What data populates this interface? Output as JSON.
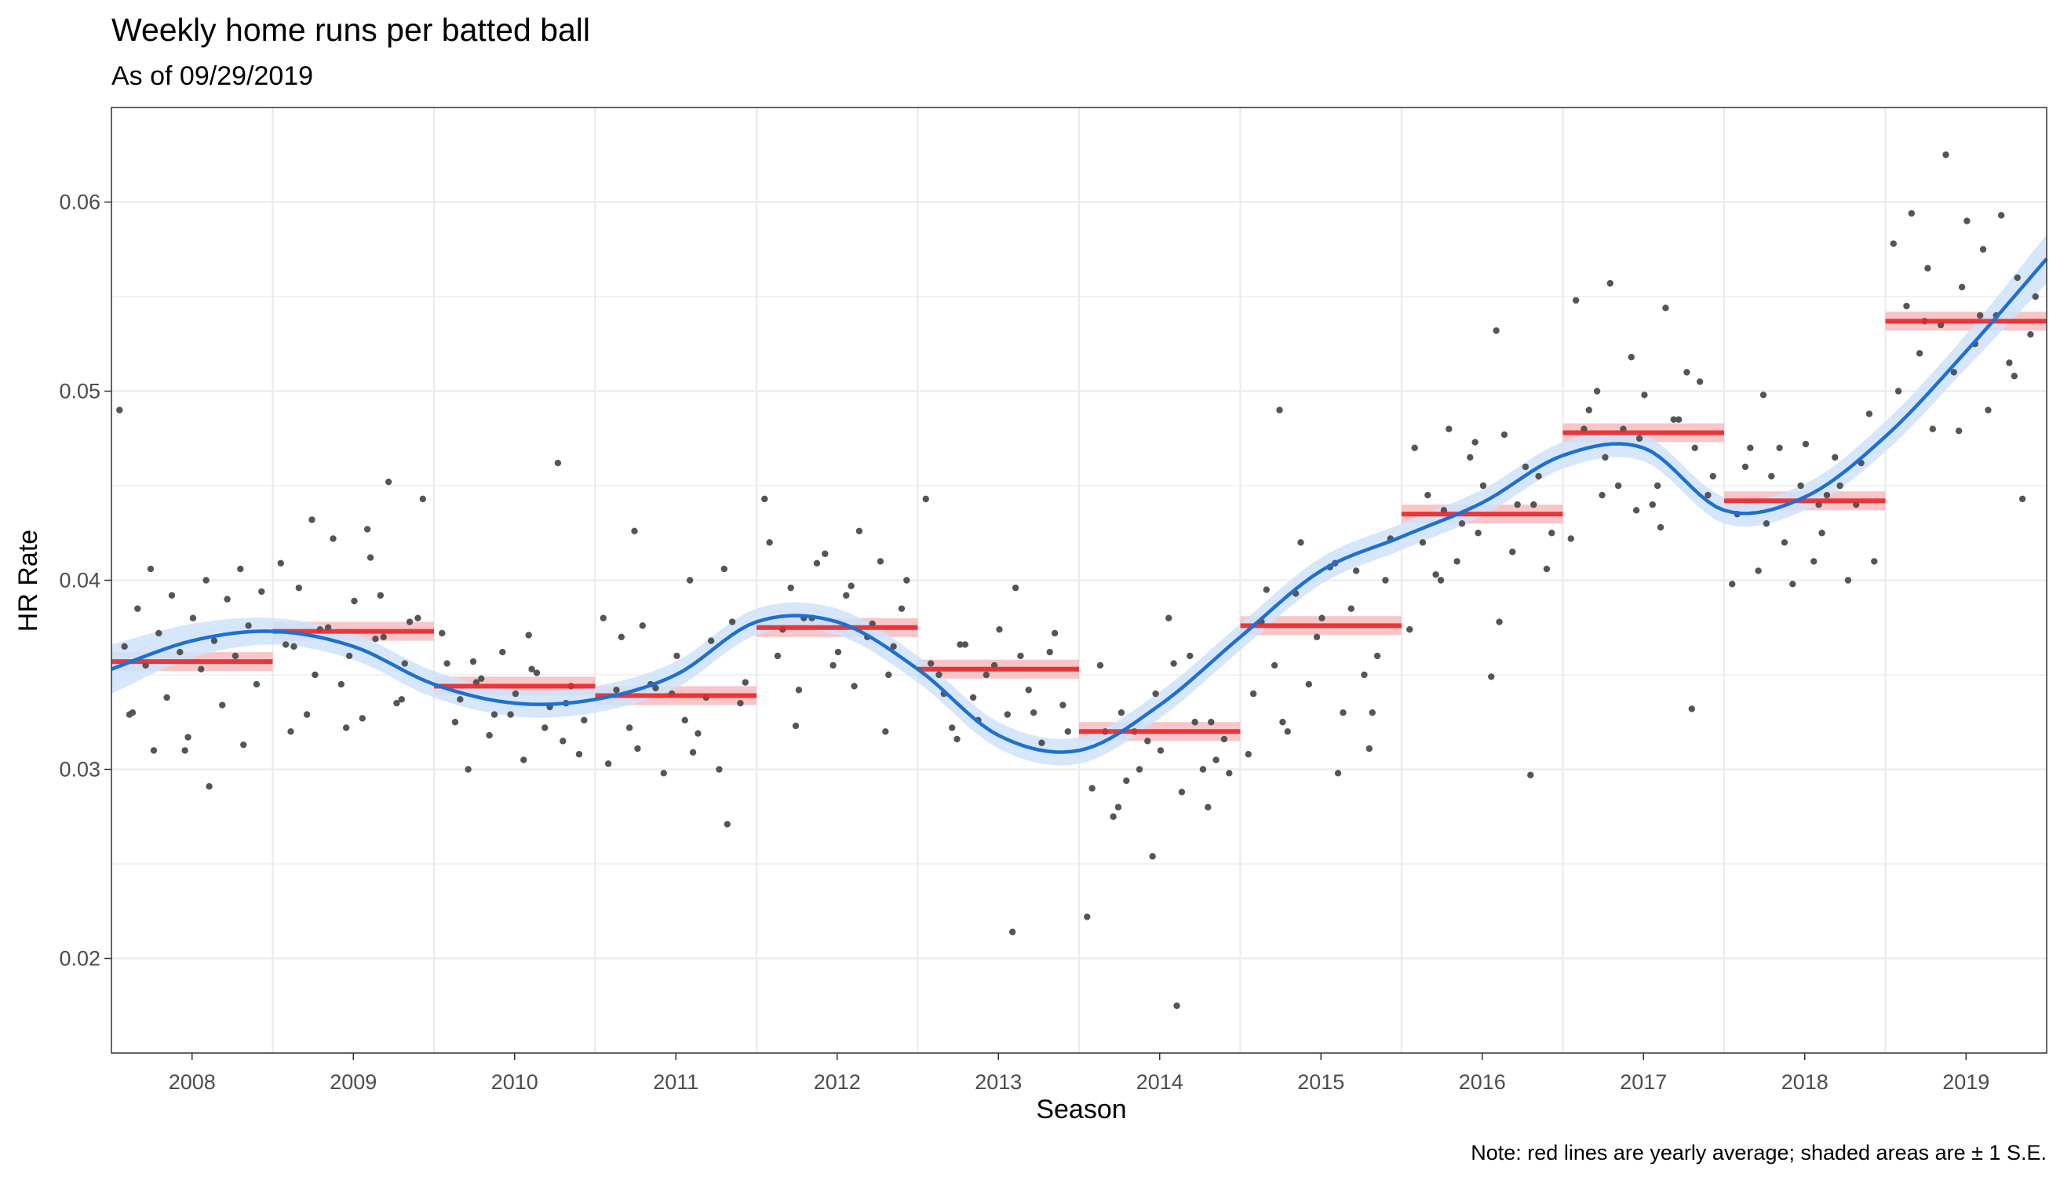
{
  "chart_data": {
    "type": "scatter",
    "title": "Weekly home runs per batted ball",
    "subtitle": "As of 09/29/2019",
    "xlabel": "Season",
    "ylabel": "HR Rate",
    "caption": "Note: red lines are yearly average; shaded areas are ± 1 S.E.",
    "categories": [
      "2008",
      "2009",
      "2010",
      "2011",
      "2012",
      "2013",
      "2014",
      "2015",
      "2016",
      "2017",
      "2018",
      "2019"
    ],
    "ylim": [
      0.015,
      0.065
    ],
    "yticks": [
      0.02,
      0.03,
      0.04,
      0.05,
      0.06
    ],
    "ytick_labels": [
      "0.02",
      "0.03",
      "0.04",
      "0.05",
      "0.06"
    ],
    "grid": true,
    "colors": {
      "points": "#555555",
      "smooth_line": "#1f6fcf",
      "smooth_band": "#cfe3fb",
      "average_line": "#e8262a",
      "average_band": "#f6b3b5",
      "grid": "#ebebeb",
      "panel_border": "#333333"
    },
    "yearly_average": {
      "values": [
        0.0357,
        0.0373,
        0.0344,
        0.0339,
        0.0375,
        0.0353,
        0.032,
        0.0376,
        0.0435,
        0.0478,
        0.0442,
        0.0537
      ],
      "se": [
        0.0005,
        0.0005,
        0.0005,
        0.0005,
        0.0005,
        0.0005,
        0.0005,
        0.0005,
        0.0005,
        0.0005,
        0.0005,
        0.0005
      ]
    },
    "smooth": {
      "x": [
        0.5,
        1.0,
        1.5,
        2.0,
        2.5,
        3.0,
        3.5,
        4.0,
        4.5,
        5.0,
        5.5,
        6.0,
        6.5,
        7.0,
        7.5,
        8.0,
        8.5,
        9.0,
        9.5,
        10.0,
        10.5,
        11.0,
        11.5,
        12.0,
        12.5
      ],
      "y": [
        0.0353,
        0.0368,
        0.0373,
        0.0365,
        0.0345,
        0.0335,
        0.0337,
        0.035,
        0.0378,
        0.0378,
        0.0353,
        0.0318,
        0.031,
        0.0334,
        0.037,
        0.0405,
        0.0423,
        0.0441,
        0.0466,
        0.047,
        0.0437,
        0.0444,
        0.0476,
        0.0521,
        0.057
      ],
      "se": [
        0.0013,
        0.0009,
        0.0007,
        0.0007,
        0.0007,
        0.0007,
        0.0007,
        0.0007,
        0.0007,
        0.0007,
        0.0007,
        0.0007,
        0.0007,
        0.0007,
        0.0007,
        0.0007,
        0.0007,
        0.0007,
        0.0007,
        0.0007,
        0.0007,
        0.0007,
        0.0008,
        0.0009,
        0.0013
      ]
    },
    "weekly_points": [
      {
        "season": "2008",
        "values": [
          0.049,
          0.0291,
          0.031,
          0.0313,
          0.0317,
          0.033,
          0.0334,
          0.0338,
          0.0345,
          0.0353,
          0.0355,
          0.036,
          0.0362,
          0.0365,
          0.0368,
          0.0372,
          0.0376,
          0.038,
          0.0385,
          0.039,
          0.0392,
          0.0394,
          0.04,
          0.0406,
          0.0406,
          0.031,
          0.0329
        ]
      },
      {
        "season": "2009",
        "values": [
          0.0409,
          0.0412,
          0.035,
          0.0356,
          0.036,
          0.0365,
          0.037,
          0.0375,
          0.038,
          0.0327,
          0.0329,
          0.0335,
          0.0345,
          0.0366,
          0.0369,
          0.0374,
          0.0378,
          0.0389,
          0.0396,
          0.0452,
          0.0422,
          0.0443,
          0.0427,
          0.0432,
          0.0337,
          0.0322,
          0.032,
          0.0392
        ]
      },
      {
        "season": "2010",
        "values": [
          0.0372,
          0.0353,
          0.0346,
          0.0335,
          0.0329,
          0.0325,
          0.0322,
          0.0318,
          0.0308,
          0.0305,
          0.03,
          0.0462,
          0.0362,
          0.0356,
          0.0351,
          0.0348,
          0.0344,
          0.034,
          0.0337,
          0.0333,
          0.0329,
          0.0326,
          0.0371,
          0.0357,
          0.0315
        ]
      },
      {
        "season": "2011",
        "values": [
          0.038,
          0.0309,
          0.0311,
          0.0271,
          0.034,
          0.0342,
          0.0338,
          0.0345,
          0.0335,
          0.0326,
          0.0322,
          0.03,
          0.0298,
          0.0303,
          0.0319,
          0.0376,
          0.0378,
          0.036,
          0.037,
          0.0368,
          0.0343,
          0.0346,
          0.04,
          0.0426,
          0.0406
        ]
      },
      {
        "season": "2012",
        "values": [
          0.0443,
          0.0344,
          0.0342,
          0.035,
          0.0355,
          0.036,
          0.037,
          0.038,
          0.0385,
          0.0392,
          0.0396,
          0.041,
          0.0414,
          0.042,
          0.0426,
          0.038,
          0.0365,
          0.0362,
          0.0374,
          0.0377,
          0.0409,
          0.04,
          0.0397,
          0.0323,
          0.032
        ]
      },
      {
        "season": "2013",
        "values": [
          0.0443,
          0.0396,
          0.0366,
          0.0362,
          0.0355,
          0.035,
          0.0342,
          0.0338,
          0.0334,
          0.0329,
          0.0322,
          0.0314,
          0.035,
          0.0356,
          0.036,
          0.0366,
          0.0372,
          0.0374,
          0.034,
          0.033,
          0.0326,
          0.032,
          0.0214,
          0.0316
        ]
      },
      {
        "season": "2014",
        "values": [
          0.0222,
          0.0175,
          0.033,
          0.0325,
          0.034,
          0.0355,
          0.036,
          0.032,
          0.0316,
          0.038,
          0.0275,
          0.03,
          0.0315,
          0.029,
          0.0288,
          0.0294,
          0.0305,
          0.031,
          0.032,
          0.0325,
          0.03,
          0.0298,
          0.0356,
          0.028,
          0.028,
          0.0254
        ]
      },
      {
        "season": "2015",
        "values": [
          0.0308,
          0.0298,
          0.0325,
          0.033,
          0.037,
          0.0378,
          0.0385,
          0.0393,
          0.04,
          0.0407,
          0.0355,
          0.035,
          0.0345,
          0.034,
          0.033,
          0.032,
          0.036,
          0.038,
          0.0395,
          0.0405,
          0.042,
          0.0422,
          0.0409,
          0.049,
          0.0311
        ]
      },
      {
        "season": "2016",
        "values": [
          0.0374,
          0.0378,
          0.0437,
          0.044,
          0.0425,
          0.042,
          0.0415,
          0.041,
          0.0406,
          0.0349,
          0.0403,
          0.046,
          0.0465,
          0.047,
          0.0477,
          0.048,
          0.0455,
          0.045,
          0.0445,
          0.044,
          0.043,
          0.0425,
          0.0532,
          0.04,
          0.0297,
          0.0473
        ]
      },
      {
        "season": "2017",
        "values": [
          0.0422,
          0.0428,
          0.0465,
          0.047,
          0.0475,
          0.048,
          0.0485,
          0.045,
          0.0445,
          0.044,
          0.05,
          0.051,
          0.0518,
          0.0548,
          0.0544,
          0.0557,
          0.0505,
          0.0498,
          0.049,
          0.0485,
          0.048,
          0.0455,
          0.045,
          0.0445,
          0.0332,
          0.0437
        ]
      },
      {
        "season": "2018",
        "values": [
          0.0398,
          0.0425,
          0.043,
          0.044,
          0.045,
          0.046,
          0.0465,
          0.047,
          0.0488,
          0.041,
          0.0405,
          0.04,
          0.0398,
          0.0435,
          0.0445,
          0.0455,
          0.0462,
          0.0472,
          0.047,
          0.045,
          0.042,
          0.041,
          0.044,
          0.0498
        ]
      },
      {
        "season": "2019",
        "values": [
          0.0578,
          0.0575,
          0.0565,
          0.056,
          0.0555,
          0.0545,
          0.054,
          0.0535,
          0.053,
          0.0525,
          0.052,
          0.0515,
          0.051,
          0.05,
          0.049,
          0.048,
          0.0443,
          0.059,
          0.0594,
          0.0593,
          0.0625,
          0.055,
          0.054,
          0.0537,
          0.0508,
          0.0479
        ]
      }
    ]
  }
}
